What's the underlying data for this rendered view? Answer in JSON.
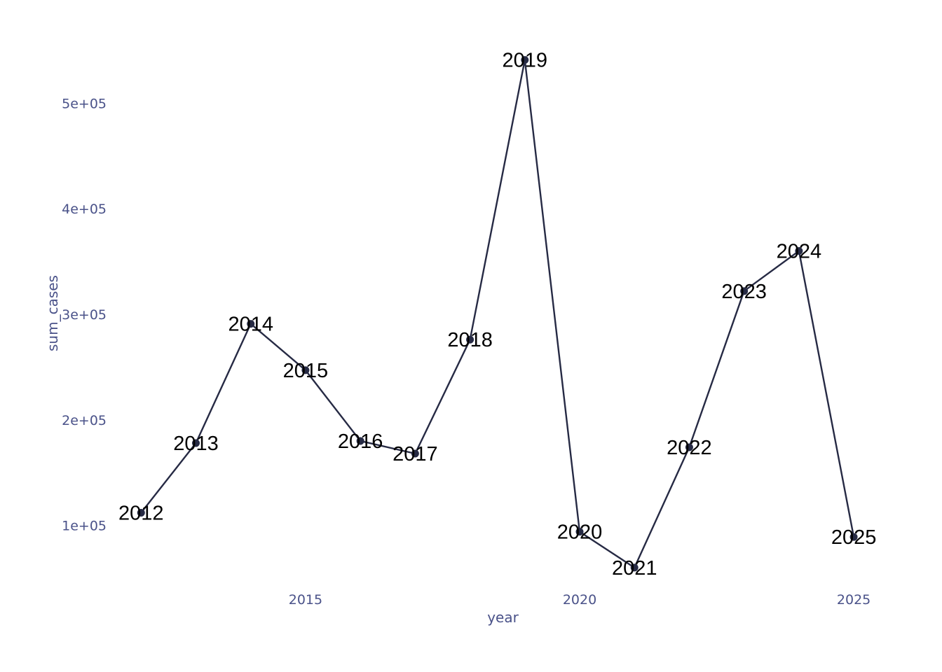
{
  "chart_data": {
    "type": "line",
    "xlabel": "year",
    "ylabel": "sum_cases",
    "x_ticks": [
      2015,
      2020,
      2025
    ],
    "x_tick_labels": [
      "2015",
      "2020",
      "2025"
    ],
    "y_ticks": [
      100000,
      200000,
      300000,
      400000,
      500000
    ],
    "y_tick_labels": [
      "1e+05",
      "2e+05",
      "3e+05",
      "4e+05",
      "5e+05"
    ],
    "xlim": [
      2011.6,
      2025.6
    ],
    "ylim": [
      44000,
      558000
    ],
    "grid": false,
    "line_color": "#262a44",
    "points": [
      {
        "year": 2012,
        "value": 112000,
        "label": "2012"
      },
      {
        "year": 2013,
        "value": 178000,
        "label": "2013"
      },
      {
        "year": 2014,
        "value": 291000,
        "label": "2014"
      },
      {
        "year": 2015,
        "value": 247000,
        "label": "2015"
      },
      {
        "year": 2016,
        "value": 180000,
        "label": "2016"
      },
      {
        "year": 2017,
        "value": 168000,
        "label": "2017"
      },
      {
        "year": 2018,
        "value": 276000,
        "label": "2018"
      },
      {
        "year": 2019,
        "value": 541000,
        "label": "2019"
      },
      {
        "year": 2020,
        "value": 94000,
        "label": "2020"
      },
      {
        "year": 2021,
        "value": 60000,
        "label": "2021"
      },
      {
        "year": 2022,
        "value": 174000,
        "label": "2022"
      },
      {
        "year": 2023,
        "value": 322000,
        "label": "2023"
      },
      {
        "year": 2024,
        "value": 360000,
        "label": "2024"
      },
      {
        "year": 2025,
        "value": 89000,
        "label": "2025"
      }
    ]
  }
}
